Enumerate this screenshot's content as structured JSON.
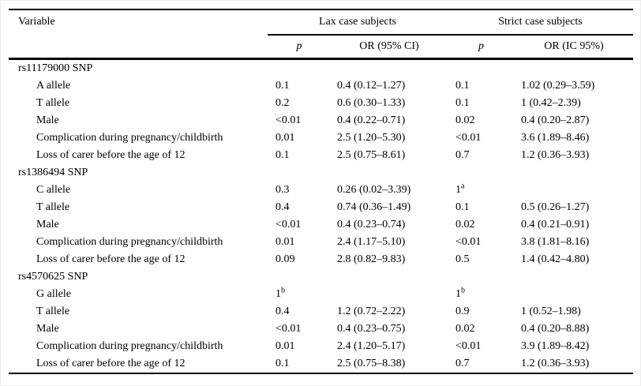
{
  "table": {
    "header": {
      "variable": "Variable",
      "groups": [
        {
          "label": "Lax case subjects"
        },
        {
          "label": "Strict case subjects"
        }
      ],
      "subheaders": {
        "p1": "p",
        "or1": "OR (95% CI)",
        "p2": "p",
        "or2": "OR (IC 95%)"
      }
    },
    "sections": [
      {
        "title": "rs11179000 SNP",
        "rows": [
          {
            "label": "A allele",
            "cells": [
              {
                "v": "0.1"
              },
              {
                "v": "0.4 (0.12–1.27)"
              },
              {
                "v": "0.1"
              },
              {
                "v": "1.02 (0.29–3.59)"
              }
            ]
          },
          {
            "label": "T allele",
            "cells": [
              {
                "v": "0.2"
              },
              {
                "v": "0.6 (0.30–1.33)"
              },
              {
                "v": "0.1"
              },
              {
                "v": "1 (0.42–2.39)"
              }
            ]
          },
          {
            "label": "Male",
            "cells": [
              {
                "v": "<0.01"
              },
              {
                "v": "0.4 (0.22–0.71)"
              },
              {
                "v": "0.02"
              },
              {
                "v": "0.4 (0.20–2.87)"
              }
            ]
          },
          {
            "label": "Complication during pregnancy/childbirth",
            "cells": [
              {
                "v": "0.01"
              },
              {
                "v": "2.5 (1.20–5.30)"
              },
              {
                "v": "<0.01"
              },
              {
                "v": "3.6 (1.89–8.46)"
              }
            ]
          },
          {
            "label": "Loss of carer before the age of 12",
            "cells": [
              {
                "v": "0.1"
              },
              {
                "v": "2.5 (0.75–8.61)"
              },
              {
                "v": "0.7"
              },
              {
                "v": "1.2 (0.36–3.93)"
              }
            ]
          }
        ]
      },
      {
        "title": "rs1386494 SNP",
        "rows": [
          {
            "label": "C allele",
            "cells": [
              {
                "v": "0.3"
              },
              {
                "v": "0.26 (0.02–3.39)"
              },
              {
                "v": "1",
                "s": "a"
              },
              {
                "v": ""
              }
            ]
          },
          {
            "label": "T allele",
            "cells": [
              {
                "v": "0.4"
              },
              {
                "v": "0.74 (0.36–1.49)"
              },
              {
                "v": "0.1"
              },
              {
                "v": "0.5 (0.26–1.27)"
              }
            ]
          },
          {
            "label": "Male",
            "cells": [
              {
                "v": "<0.01"
              },
              {
                "v": "0.4 (0.23–0.74)"
              },
              {
                "v": "0.02"
              },
              {
                "v": "0.4 (0.21–0.91)"
              }
            ]
          },
          {
            "label": "Complication during pregnancy/childbirth",
            "cells": [
              {
                "v": "0.01"
              },
              {
                "v": "2.4 (1.17–5.10)"
              },
              {
                "v": "<0.01"
              },
              {
                "v": "3.8 (1.81–8.16)"
              }
            ]
          },
          {
            "label": "Loss of carer before the age of 12",
            "cells": [
              {
                "v": "0.09"
              },
              {
                "v": "2.8 (0.82–9.83)"
              },
              {
                "v": "0.5"
              },
              {
                "v": "1.4 (0.42–4.80)"
              }
            ]
          }
        ]
      },
      {
        "title": "rs4570625 SNP",
        "rows": [
          {
            "label": "G allele",
            "cells": [
              {
                "v": "1",
                "s": "b"
              },
              {
                "v": ""
              },
              {
                "v": "1",
                "s": "b"
              },
              {
                "v": ""
              }
            ]
          },
          {
            "label": "T allele",
            "cells": [
              {
                "v": "0.4"
              },
              {
                "v": "1.2 (0.72–2.22)"
              },
              {
                "v": "0.9"
              },
              {
                "v": "1 (0.52–1.98)"
              }
            ]
          },
          {
            "label": "Male",
            "cells": [
              {
                "v": "<0.01"
              },
              {
                "v": "0.4 (0.23–0.75)"
              },
              {
                "v": "0.02"
              },
              {
                "v": "0.4 (0.20–8.88)"
              }
            ]
          },
          {
            "label": "Complication during pregnancy/childbirth",
            "cells": [
              {
                "v": "0.01"
              },
              {
                "v": "2.4 (1.20–5.17)"
              },
              {
                "v": "<0.01"
              },
              {
                "v": "3.9 (1.89–8.42)"
              }
            ]
          },
          {
            "label": "Loss of carer before the age of 12",
            "cells": [
              {
                "v": "0.1"
              },
              {
                "v": "2.5 (0.75–8.38)"
              },
              {
                "v": "0.7"
              },
              {
                "v": "1.2 (0.36–3.93)"
              }
            ]
          }
        ]
      }
    ]
  }
}
